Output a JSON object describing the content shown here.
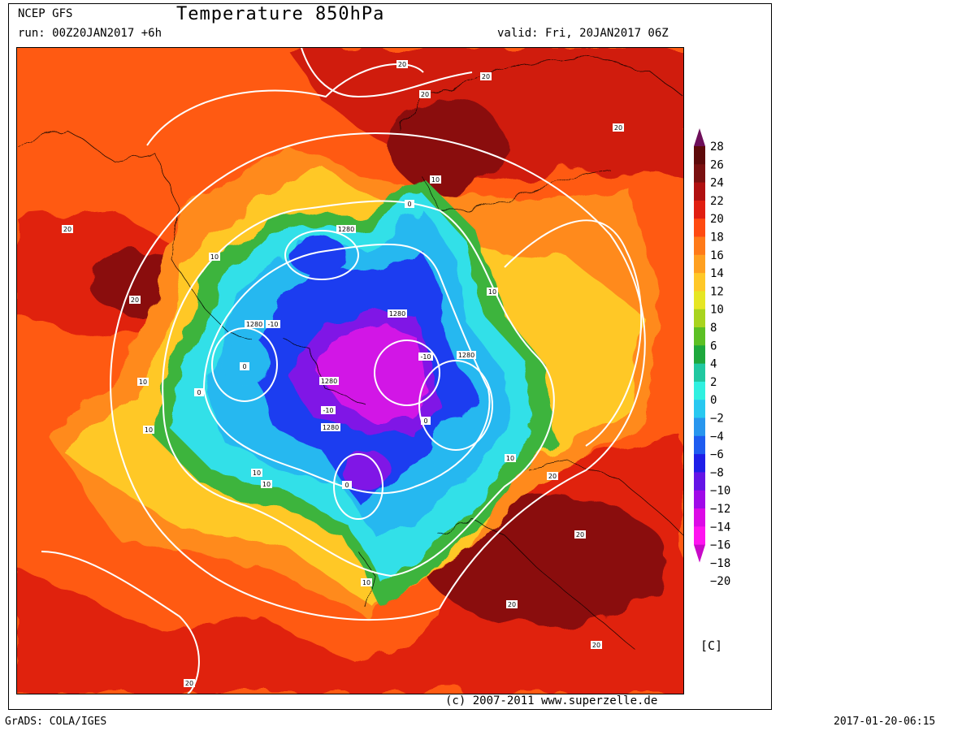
{
  "header": {
    "model": "NCEP GFS",
    "title": "Temperature 850hPa",
    "run": "run: 00Z20JAN2017 +6h",
    "valid": "valid: Fri, 20JAN2017 06Z"
  },
  "footer": {
    "copyright": "(c) 2007-2011 www.superzelle.de",
    "grads": "GrADS: COLA/IGES",
    "timestamp": "2017-01-20-06:15"
  },
  "legend": {
    "unit": "[C]",
    "levels": [
      "28",
      "26",
      "24",
      "22",
      "20",
      "18",
      "16",
      "14",
      "12",
      "10",
      "8",
      "6",
      "4",
      "2",
      "0",
      "−2",
      "−4",
      "−6",
      "−8",
      "−10",
      "−12",
      "−14",
      "−16",
      "−18",
      "−20"
    ],
    "colors": [
      "#6e0f5a",
      "#5e0a0a",
      "#7a1010",
      "#b01010",
      "#e01e10",
      "#ff4a10",
      "#ff7a18",
      "#ffa020",
      "#ffc828",
      "#e6e624",
      "#a8d41e",
      "#5cc024",
      "#1ea83c",
      "#20c8a0",
      "#30f0e0",
      "#28c8f0",
      "#2896ee",
      "#1e5cf0",
      "#1e1ee8",
      "#6414e6",
      "#a00ae8",
      "#dc0ae6",
      "#ff14f0",
      "#c80ac8"
    ]
  },
  "contour_labels": {
    "geopotential": "1280",
    "temperatures": [
      "20",
      "10",
      "0",
      "-10"
    ]
  },
  "map_colors": {
    "cold_core": "#c814e6",
    "cold": "#1e3cf0",
    "cool": "#30e0e8",
    "mild": "#5cc024",
    "warm": "#ffc828",
    "hot": "#ff6a10",
    "very_hot": "#d01a10",
    "extreme": "#7a1010"
  }
}
